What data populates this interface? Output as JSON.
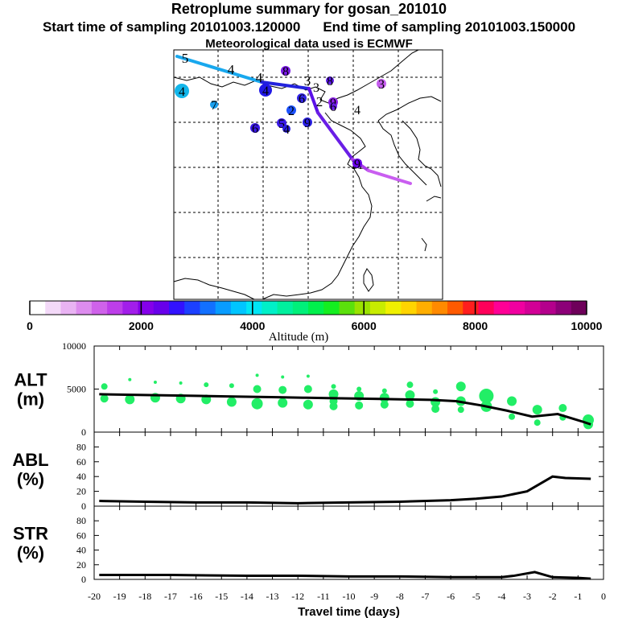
{
  "header": {
    "title": "Retroplume summary for gosan_201010",
    "start_label": "Start time of sampling 20101003.120000",
    "end_label": "End time of sampling 20101003.150000",
    "met_label": "Meteorological data used is ECMWF"
  },
  "colorbar": {
    "label": "Altitude (m)",
    "ticks": [
      "0",
      "2000",
      "4000",
      "6000",
      "8000",
      "10000"
    ],
    "range": [
      0,
      10000
    ],
    "colors": [
      "#ffffff",
      "#f3d9f8",
      "#e9b3f3",
      "#dd8cee",
      "#cf62ea",
      "#bd3ee9",
      "#a21eea",
      "#8500ea",
      "#6800eb",
      "#3212ff",
      "#1c40ff",
      "#1270ff",
      "#089cff",
      "#00c5ff",
      "#00e6f5",
      "#00f0c8",
      "#00f09e",
      "#00f07a",
      "#00f04c",
      "#14ee20",
      "#5be00c",
      "#9ae200",
      "#c8ec00",
      "#f0f000",
      "#ffd400",
      "#ffae00",
      "#ff8a00",
      "#ff5a00",
      "#ff1e1e",
      "#ff005a",
      "#ff0096",
      "#f000a0",
      "#d20096",
      "#b4008c",
      "#8c0078",
      "#6e005a"
    ]
  },
  "map": {
    "trajectory_labels": [
      "5",
      "4",
      "4",
      "3",
      "2",
      "1",
      "1"
    ],
    "cluster_labels": [
      "4",
      "7",
      "4",
      "8",
      "3",
      "8",
      "2",
      "9",
      "6",
      "5",
      "4",
      "6",
      "9",
      "6",
      "9",
      "4",
      "3"
    ]
  },
  "chart_data": [
    {
      "type": "scatter",
      "name": "ALT",
      "ylabel_line1": "ALT",
      "ylabel_line2": "(m)",
      "ylim": [
        0,
        10000
      ],
      "yticks": [
        "10000",
        "5000",
        "0"
      ],
      "mean_line": {
        "x": [
          -19.8,
          -18.8,
          -17.8,
          -16.8,
          -15.8,
          -14.8,
          -13.8,
          -12.8,
          -11.8,
          -10.8,
          -9.8,
          -8.8,
          -7.8,
          -6.8,
          -5.8,
          -4.8,
          -3.8,
          -2.8,
          -1.8,
          -0.8,
          -0.5
        ],
        "y": [
          4400,
          4350,
          4300,
          4250,
          4200,
          4150,
          4100,
          4050,
          4000,
          3950,
          3900,
          3850,
          3800,
          3750,
          3600,
          3100,
          2500,
          1800,
          2100,
          1200,
          900
        ]
      },
      "points": {
        "x": [
          -19.6,
          -19.6,
          -18.6,
          -18.6,
          -17.6,
          -17.6,
          -16.6,
          -16.6,
          -15.6,
          -15.6,
          -14.6,
          -14.6,
          -13.6,
          -13.6,
          -13.6,
          -12.6,
          -12.6,
          -12.6,
          -11.6,
          -11.6,
          -11.6,
          -10.6,
          -10.6,
          -10.6,
          -10.6,
          -9.6,
          -9.6,
          -9.6,
          -8.6,
          -8.6,
          -8.6,
          -7.6,
          -7.6,
          -7.6,
          -6.6,
          -6.6,
          -6.6,
          -5.6,
          -5.6,
          -5.6,
          -4.6,
          -4.6,
          -3.6,
          -3.6,
          -2.6,
          -2.6,
          -1.6,
          -1.6,
          -0.6,
          -0.6
        ],
        "y": [
          5300,
          3900,
          6100,
          3800,
          5800,
          4000,
          5700,
          3900,
          5500,
          3800,
          5400,
          3500,
          6600,
          5000,
          3300,
          6400,
          4900,
          3400,
          6500,
          5000,
          3200,
          5300,
          4400,
          3600,
          3000,
          5000,
          4200,
          3100,
          4800,
          4000,
          3200,
          5500,
          4300,
          3300,
          4700,
          3500,
          2700,
          5300,
          3600,
          2600,
          4200,
          3000,
          3600,
          1800,
          2600,
          1100,
          2800,
          1700,
          1400,
          900
        ],
        "size": [
          4,
          5,
          2,
          6,
          2,
          6,
          2,
          6,
          3,
          6,
          3,
          6,
          2,
          5,
          7,
          2,
          5,
          6,
          2,
          5,
          6,
          3,
          6,
          5,
          5,
          3,
          6,
          5,
          3,
          6,
          5,
          4,
          6,
          5,
          3,
          6,
          5,
          6,
          6,
          4,
          9,
          7,
          6,
          4,
          6,
          4,
          5,
          4,
          7,
          6
        ]
      }
    },
    {
      "type": "line",
      "name": "ABL",
      "ylabel_line1": "ABL",
      "ylabel_line2": "(%)",
      "ylim": [
        0,
        100
      ],
      "yticks": [
        "80",
        "60",
        "40",
        "20",
        "0"
      ],
      "x": [
        -19.8,
        -18,
        -16,
        -14,
        -12,
        -10,
        -8,
        -6,
        -5,
        -4,
        -3,
        -2,
        -1.5,
        -0.5
      ],
      "y": [
        7,
        6,
        5,
        5,
        4,
        5,
        6,
        8,
        10,
        13,
        20,
        40,
        38,
        37
      ]
    },
    {
      "type": "line",
      "name": "STR",
      "ylabel_line1": "STR",
      "ylabel_line2": "(%)",
      "ylim": [
        0,
        100
      ],
      "yticks": [
        "80",
        "60",
        "40",
        "20",
        "0"
      ],
      "xlabel": "Travel time (days)",
      "xticks": [
        "-20",
        "-19",
        "-18",
        "-17",
        "-16",
        "-15",
        "-14",
        "-13",
        "-12",
        "-11",
        "-10",
        "-9",
        "-8",
        "-7",
        "-6",
        "-5",
        "-4",
        "-3",
        "-2",
        "-1",
        "0"
      ],
      "x": [
        -19.8,
        -17,
        -14,
        -12,
        -10,
        -8,
        -6,
        -4,
        -3.5,
        -2.7,
        -2,
        -1,
        -0.5
      ],
      "y": [
        6,
        6,
        5,
        5,
        4,
        4,
        3,
        3,
        5,
        10,
        3,
        2,
        1
      ]
    }
  ]
}
